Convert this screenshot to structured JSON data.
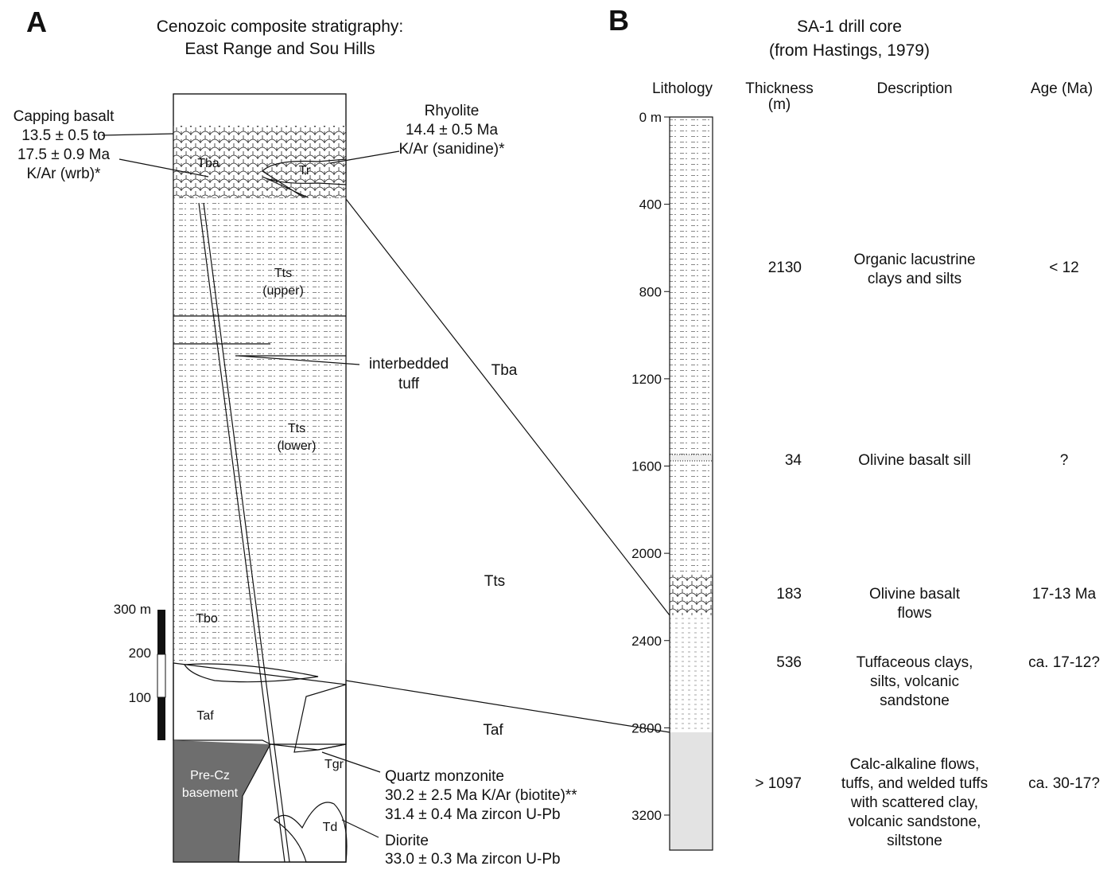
{
  "panel_a": {
    "label": "A",
    "title": [
      "Cenozoic composite stratigraphy:",
      "East Range and Sou Hills"
    ],
    "units": {
      "tba": "Tba",
      "tr": "Tr",
      "tts_upper": [
        "Tts",
        "(upper)"
      ],
      "tts_lower": [
        "Tts",
        "(lower)"
      ],
      "tbo": "Tbo",
      "taf": "Taf",
      "basement": [
        "Pre-Cz",
        "basement"
      ],
      "tgr": "Tgr",
      "td": "Td"
    },
    "annotations": {
      "capping": [
        "Capping basalt",
        "13.5 ± 0.5 to",
        "17.5 ± 0.9 Ma",
        "K/Ar (wrb)*"
      ],
      "rhyolite": [
        "Rhyolite",
        "14.4 ± 0.5 Ma",
        "K/Ar (sanidine)*"
      ],
      "tuff": [
        "interbedded",
        "tuff"
      ],
      "monzonite": [
        "Quartz monzonite",
        "30.2 ± 2.5 Ma  K/Ar (biotite)**",
        "31.4 ± 0.4 Ma zircon U-Pb"
      ],
      "diorite": [
        "Diorite",
        "33.0 ± 0.3 Ma zircon U-Pb"
      ]
    },
    "scale": [
      "300 m",
      "200",
      "100"
    ]
  },
  "correlation": [
    "Tba",
    "Tts",
    "Taf"
  ],
  "panel_b": {
    "label": "B",
    "title": [
      "SA-1 drill core",
      "(from Hastings, 1979)"
    ],
    "headers": [
      [
        "Lithology"
      ],
      [
        "Thickness",
        "(m)"
      ],
      [
        "Description"
      ],
      [
        "Age (Ma)"
      ]
    ],
    "depth_ticks": [
      "0 m",
      "400",
      "800",
      "1200",
      "1600",
      "2000",
      "2400",
      "2800",
      "3200"
    ],
    "rows": [
      {
        "thickness": "2130",
        "description": [
          "Organic lacustrine",
          "clays and silts"
        ],
        "age": "< 12"
      },
      {
        "thickness": "34",
        "description": [
          "Olivine basalt sill"
        ],
        "age": "?"
      },
      {
        "thickness": "183",
        "description": [
          "Olivine basalt",
          "flows"
        ],
        "age": "17-13 Ma"
      },
      {
        "thickness": "536",
        "description": [
          "Tuffaceous clays,",
          "silts, volcanic",
          "sandstone"
        ],
        "age": "ca. 17-12?"
      },
      {
        "thickness": "> 1097",
        "description": [
          "Calc-alkaline flows,",
          "tuffs, and welded tuffs",
          "with scattered clay,",
          "volcanic sandstone,",
          "siltstone"
        ],
        "age": "ca. 30-17?"
      }
    ]
  }
}
